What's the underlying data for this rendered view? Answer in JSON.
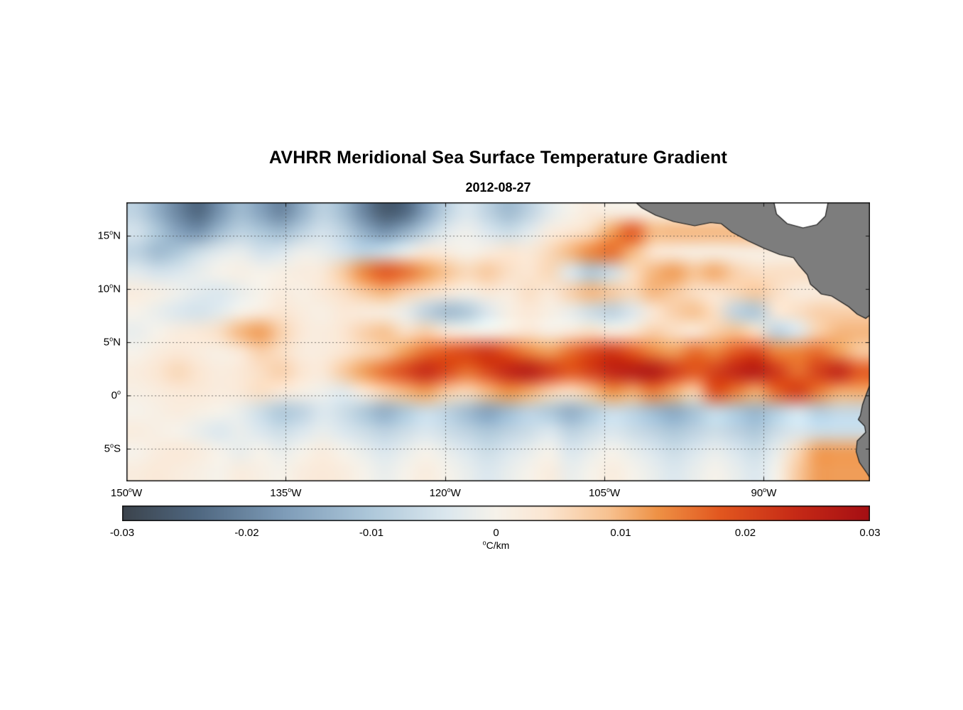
{
  "title": "AVHRR Meridional Sea Surface Temperature Gradient",
  "subtitle": "2012-08-27",
  "colorbar": {
    "ticks": [
      {
        "label": "-0.03",
        "value": -0.03
      },
      {
        "label": "-0.02",
        "value": -0.02
      },
      {
        "label": "-0.01",
        "value": -0.01
      },
      {
        "label": "0",
        "value": 0
      },
      {
        "label": "0.01",
        "value": 0.01
      },
      {
        "label": "0.02",
        "value": 0.02
      },
      {
        "label": "0.03",
        "value": 0.03
      }
    ],
    "unit_sup": "o",
    "unit_main": "C/km",
    "range": [
      -0.03,
      0.03
    ]
  },
  "chart_data": {
    "type": "heatmap",
    "title": "AVHRR Meridional Sea Surface Temperature Gradient",
    "subtitle": "2012-08-27",
    "units": "°C/km",
    "value_range": [
      -0.03,
      0.03
    ],
    "lon_range": [
      -150,
      -80
    ],
    "lat_range": [
      -8.1,
      18.1
    ],
    "grid_lons": [
      -135,
      -120,
      -105,
      -90
    ],
    "grid_lats": [
      15,
      10,
      5,
      0,
      -5
    ],
    "x_ticks": [
      {
        "num": "150",
        "hemi": "W",
        "lon": -150
      },
      {
        "num": "135",
        "hemi": "W",
        "lon": -135
      },
      {
        "num": "120",
        "hemi": "W",
        "lon": -120
      },
      {
        "num": "105",
        "hemi": "W",
        "lon": -105
      },
      {
        "num": "90",
        "hemi": "W",
        "lon": -90
      }
    ],
    "y_ticks": [
      {
        "num": "15",
        "hemi": "N",
        "lat": 15
      },
      {
        "num": "10",
        "hemi": "N",
        "lat": 10
      },
      {
        "num": "5",
        "hemi": "N",
        "lat": 5
      },
      {
        "num": "0",
        "hemi": "",
        "lat": 0
      },
      {
        "num": "5",
        "hemi": "S",
        "lat": -5
      }
    ],
    "degree_glyph": "o",
    "lon_start": -150,
    "lon_step": 2,
    "lat_start": 18,
    "lat_step": -2,
    "values": [
      [
        -0.008,
        -0.014,
        -0.02,
        -0.024,
        -0.018,
        -0.012,
        -0.016,
        -0.02,
        -0.014,
        -0.008,
        -0.012,
        -0.02,
        -0.026,
        -0.024,
        -0.016,
        -0.008,
        -0.004,
        -0.008,
        -0.012,
        -0.008,
        -0.003,
        0,
        0.002,
        0.001,
        null,
        null,
        null,
        null,
        null,
        null,
        null,
        null,
        null,
        null,
        null,
        null
      ],
      [
        -0.005,
        -0.01,
        -0.016,
        -0.018,
        -0.012,
        -0.008,
        -0.01,
        -0.012,
        -0.008,
        -0.005,
        -0.008,
        -0.014,
        -0.018,
        -0.014,
        -0.008,
        -0.003,
        -0.001,
        -0.004,
        -0.006,
        -0.003,
        0.002,
        0.004,
        0.006,
        0.012,
        0.018,
        0.01,
        null,
        null,
        null,
        null,
        null,
        null,
        null,
        null,
        null,
        null
      ],
      [
        -0.008,
        -0.012,
        -0.01,
        -0.006,
        -0.003,
        -0.002,
        -0.005,
        -0.004,
        -0.001,
        -0.002,
        -0.005,
        -0.008,
        -0.006,
        -0.002,
        0.003,
        0.002,
        0,
        0.002,
        0.004,
        0.003,
        0.006,
        0.01,
        0.014,
        0.016,
        0.01,
        0.004,
        0.002,
        0.001,
        null,
        null,
        null,
        null,
        null,
        null,
        null,
        null
      ],
      [
        -0.003,
        -0.005,
        -0.004,
        -0.002,
        0,
        0.001,
        0,
        0.001,
        0.002,
        0.003,
        0.008,
        0.014,
        0.018,
        0.016,
        0.012,
        0.009,
        0.006,
        0.008,
        0.005,
        0.004,
        0.006,
        -0.004,
        -0.01,
        -0.006,
        0.005,
        0.01,
        0.012,
        0.009,
        0.011,
        0.007,
        0.005,
        null,
        null,
        null,
        null,
        null
      ],
      [
        0.002,
        0.001,
        -0.001,
        -0.003,
        -0.004,
        -0.002,
        0,
        0.002,
        0.001,
        0.003,
        0.005,
        0.008,
        0.01,
        0.007,
        0.005,
        0.003,
        0.001,
        0.003,
        0.002,
        0.005,
        0.003,
        0.007,
        0.01,
        0.008,
        0.006,
        0.01,
        0.008,
        0.005,
        0.004,
        0.006,
        0.008,
        0.005,
        0.002,
        null,
        null,
        null
      ],
      [
        0,
        -0.002,
        -0.004,
        -0.005,
        -0.003,
        0,
        0.002,
        0.004,
        0.002,
        0.001,
        0.003,
        0.002,
        0.001,
        -0.002,
        -0.008,
        -0.012,
        -0.01,
        -0.004,
        0.001,
        0.003,
        0.001,
        -0.002,
        -0.006,
        -0.008,
        -0.004,
        0.003,
        0.007,
        0.009,
        0.005,
        -0.008,
        -0.01,
        0.003,
        0.005,
        0.007,
        null,
        null
      ],
      [
        -0.002,
        0,
        0.002,
        0.003,
        0.005,
        0.01,
        0.012,
        0.007,
        0.003,
        0.002,
        0.004,
        0.007,
        0.009,
        0.005,
        0.007,
        0.003,
        0.001,
        0,
        0.002,
        0.004,
        0.001,
        0.003,
        0.005,
        0.002,
        0.004,
        0.007,
        0.005,
        0.003,
        0.007,
        0.009,
        0.005,
        -0.008,
        -0.004,
        0.007,
        0.01,
        null
      ],
      [
        0,
        0.002,
        0.003,
        0.002,
        0.001,
        0.003,
        0.007,
        0.005,
        0.002,
        0.002,
        0.004,
        0.006,
        0.008,
        0.012,
        0.016,
        0.018,
        0.02,
        0.022,
        0.018,
        0.014,
        0.012,
        0.016,
        0.02,
        0.022,
        0.018,
        0.014,
        0.012,
        0.016,
        0.014,
        0.018,
        0.02,
        0.014,
        0.014,
        0.016,
        0.012,
        0.008
      ],
      [
        0.002,
        0.004,
        0.006,
        0.004,
        0.002,
        0.003,
        0.005,
        0.007,
        0.004,
        0.003,
        0.008,
        0.012,
        0.016,
        0.02,
        0.024,
        0.02,
        0.016,
        0.02,
        0.025,
        0.027,
        0.022,
        0.018,
        0.021,
        0.025,
        0.027,
        0.028,
        0.022,
        0.018,
        0.021,
        0.025,
        0.027,
        0.022,
        0.016,
        0.021,
        0.025,
        0.018
      ],
      [
        0.001,
        0.002,
        0.003,
        0.003,
        0.002,
        0.003,
        0.005,
        0.003,
        0.001,
        -0.001,
        -0.003,
        0.003,
        0.007,
        0.01,
        0.012,
        0.008,
        0.006,
        0.01,
        0.013,
        0.011,
        0.007,
        0.005,
        0.009,
        0.013,
        0.011,
        0.015,
        0.011,
        0.007,
        0.019,
        0.015,
        0.011,
        0.017,
        0.021,
        0.015,
        0.011,
        null
      ],
      [
        0,
        0.001,
        0.002,
        0.001,
        0,
        -0.002,
        -0.006,
        -0.01,
        -0.008,
        -0.004,
        -0.006,
        -0.01,
        -0.014,
        -0.01,
        -0.006,
        -0.008,
        -0.012,
        -0.016,
        -0.012,
        -0.008,
        -0.01,
        -0.014,
        -0.01,
        -0.006,
        -0.008,
        -0.012,
        -0.015,
        -0.011,
        -0.007,
        -0.01,
        -0.013,
        -0.009,
        -0.005,
        -0.009,
        -0.007,
        null
      ],
      [
        0.002,
        0.001,
        0,
        -0.002,
        -0.004,
        -0.002,
        -0.004,
        -0.006,
        -0.004,
        -0.002,
        -0.004,
        -0.006,
        -0.008,
        -0.006,
        -0.004,
        -0.006,
        -0.008,
        -0.01,
        -0.008,
        -0.006,
        -0.004,
        -0.008,
        -0.006,
        -0.004,
        -0.006,
        -0.008,
        -0.01,
        -0.008,
        -0.006,
        -0.008,
        -0.01,
        -0.006,
        -0.004,
        -0.006,
        null,
        null
      ],
      [
        0,
        0.002,
        0.003,
        0.002,
        0,
        -0.002,
        0,
        -0.002,
        0,
        0.002,
        0,
        -0.002,
        -0.004,
        -0.002,
        0,
        -0.002,
        -0.004,
        -0.006,
        -0.004,
        -0.002,
        0,
        -0.004,
        -0.002,
        0,
        -0.002,
        -0.004,
        -0.006,
        -0.004,
        -0.002,
        -0.004,
        -0.006,
        -0.002,
        0.006,
        0.012,
        null,
        null
      ],
      [
        0.002,
        0.003,
        0.002,
        0.001,
        0,
        0.002,
        0.001,
        0,
        0.002,
        0.003,
        0.002,
        0,
        -0.002,
        0,
        0.002,
        0,
        -0.002,
        -0.004,
        -0.002,
        0,
        0.002,
        -0.002,
        0,
        0.002,
        0,
        -0.002,
        -0.004,
        -0.002,
        0,
        -0.002,
        -0.004,
        0,
        0.008,
        0.012,
        null,
        null
      ]
    ],
    "colormap_stops": [
      [
        -0.03,
        "#3b434c"
      ],
      [
        -0.024,
        "#4f6780"
      ],
      [
        -0.017,
        "#7e9cb8"
      ],
      [
        -0.01,
        "#aec8da"
      ],
      [
        -0.004,
        "#dbe7ee"
      ],
      [
        0.0,
        "#f6f2ea"
      ],
      [
        0.004,
        "#fbe6d2"
      ],
      [
        0.009,
        "#f7c291"
      ],
      [
        0.013,
        "#ee9145"
      ],
      [
        0.018,
        "#e2571f"
      ],
      [
        0.024,
        "#c62a16"
      ],
      [
        0.03,
        "#a50e13"
      ]
    ],
    "land_color": "#7d7d7d",
    "coastline_color": "#1a1a1a",
    "land_polygons": [
      {
        "name": "central-america",
        "fill": "land",
        "points": [
          [
            -102.6,
            18.6
          ],
          [
            -101.5,
            17.6
          ],
          [
            -100.2,
            16.9
          ],
          [
            -98.5,
            16.3
          ],
          [
            -96.5,
            15.9
          ],
          [
            -95.0,
            16.2
          ],
          [
            -94.0,
            16.1
          ],
          [
            -93.0,
            15.3
          ],
          [
            -91.5,
            14.5
          ],
          [
            -90.0,
            13.8
          ],
          [
            -88.5,
            13.2
          ],
          [
            -87.2,
            12.9
          ],
          [
            -86.7,
            12.2
          ],
          [
            -85.9,
            11.3
          ],
          [
            -85.6,
            10.4
          ],
          [
            -85.0,
            9.9
          ],
          [
            -84.6,
            9.5
          ],
          [
            -83.6,
            9.3
          ],
          [
            -82.8,
            8.8
          ],
          [
            -82.0,
            8.3
          ],
          [
            -81.2,
            7.6
          ],
          [
            -80.4,
            7.2
          ],
          [
            -79.5,
            7.9
          ],
          [
            -78.0,
            7.0
          ],
          [
            -78.0,
            19.0
          ]
        ]
      },
      {
        "name": "caribbean-gap",
        "fill": "white",
        "points": [
          [
            -89.2,
            18.8
          ],
          [
            -88.8,
            17.0
          ],
          [
            -87.8,
            16.1
          ],
          [
            -86.3,
            15.7
          ],
          [
            -85.0,
            16.0
          ],
          [
            -84.2,
            16.8
          ],
          [
            -83.8,
            18.8
          ]
        ]
      },
      {
        "name": "south-america",
        "fill": "land",
        "points": [
          [
            -79.0,
            1.8
          ],
          [
            -80.0,
            1.0
          ],
          [
            -80.3,
            0.2
          ],
          [
            -80.7,
            -0.9
          ],
          [
            -80.9,
            -1.9
          ],
          [
            -81.1,
            -2.3
          ],
          [
            -80.5,
            -2.9
          ],
          [
            -80.4,
            -3.5
          ],
          [
            -81.2,
            -4.3
          ],
          [
            -81.3,
            -5.3
          ],
          [
            -81.0,
            -6.3
          ],
          [
            -80.3,
            -7.3
          ],
          [
            -79.6,
            -8.4
          ],
          [
            -78.0,
            -9.0
          ],
          [
            -78.0,
            1.8
          ]
        ]
      }
    ]
  }
}
